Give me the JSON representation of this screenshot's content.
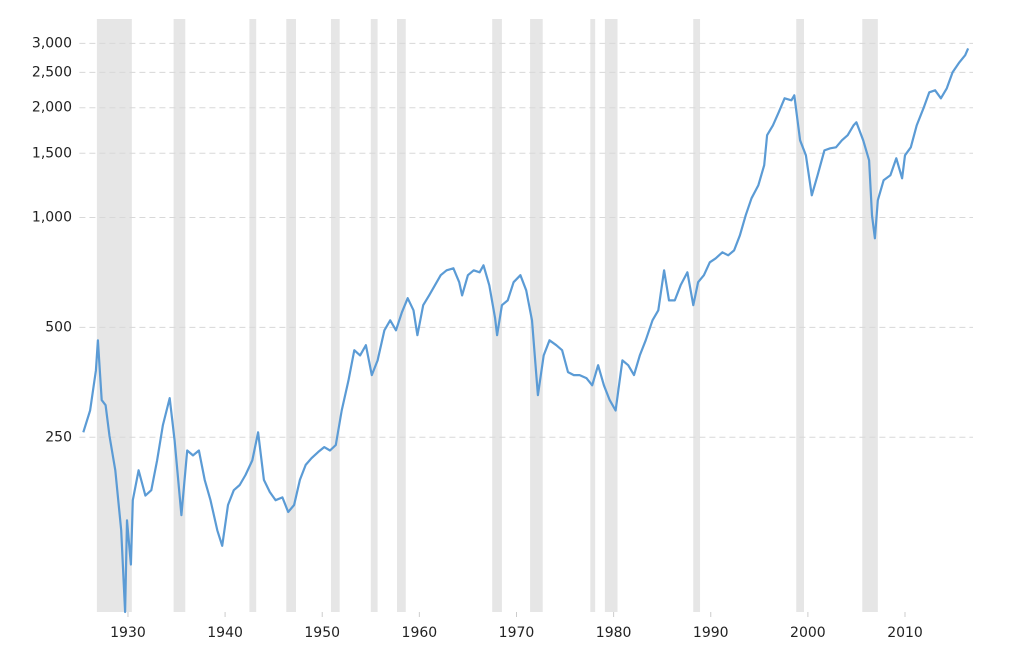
{
  "chart_data": {
    "type": "line",
    "color": "#5b9bd5",
    "shade_color": "#e6e6e6",
    "log_y": true,
    "grid": true,
    "xlim": [
      1925,
      2017
    ],
    "xticks": [
      1930,
      1940,
      1950,
      1960,
      1970,
      1980,
      1990,
      2000,
      2010
    ],
    "ylim": [
      83,
      3500
    ],
    "yticks": [
      250,
      500,
      {
        "value": 1000,
        "label": "1,000"
      },
      {
        "value": 1500,
        "label": "1,500"
      },
      {
        "value": 2000,
        "label": "2,000"
      },
      {
        "value": 2500,
        "label": "2,500"
      },
      {
        "value": 3000,
        "label": "3,000"
      }
    ],
    "recessions": [
      [
        1926.8,
        1930.4
      ],
      [
        1934.7,
        1935.9
      ],
      [
        1942.5,
        1943.2
      ],
      [
        1946.3,
        1947.3
      ],
      [
        1950.9,
        1951.8
      ],
      [
        1955.0,
        1955.7
      ],
      [
        1957.7,
        1958.6
      ],
      [
        1967.5,
        1968.5
      ],
      [
        1971.4,
        1972.7
      ],
      [
        1977.6,
        1978.1
      ],
      [
        1979.1,
        1980.4
      ],
      [
        1988.2,
        1988.9
      ],
      [
        1998.8,
        1999.6
      ],
      [
        2005.6,
        2007.2
      ]
    ],
    "x": [
      1925.4,
      1926.1,
      1926.7,
      1926.9,
      1927.3,
      1927.7,
      1928.1,
      1928.7,
      1929.3,
      1929.7,
      1929.9,
      1930.3,
      1930.5,
      1931.1,
      1931.8,
      1932.4,
      1933.0,
      1933.6,
      1934.3,
      1934.8,
      1935.5,
      1936.1,
      1936.7,
      1937.3,
      1937.9,
      1938.5,
      1939.2,
      1939.7,
      1940.3,
      1940.9,
      1941.5,
      1942.1,
      1942.8,
      1943.4,
      1944.0,
      1944.6,
      1945.2,
      1945.9,
      1946.5,
      1947.1,
      1947.7,
      1948.3,
      1948.9,
      1949.6,
      1950.2,
      1950.8,
      1951.4,
      1952.0,
      1952.7,
      1953.3,
      1953.9,
      1954.5,
      1955.1,
      1955.7,
      1956.4,
      1957.0,
      1957.6,
      1958.2,
      1958.8,
      1959.4,
      1959.8,
      1960.4,
      1961.0,
      1961.6,
      1962.2,
      1962.8,
      1963.5,
      1964.1,
      1964.4,
      1965.0,
      1965.6,
      1966.2,
      1966.6,
      1967.2,
      1967.8,
      1968.0,
      1968.5,
      1969.1,
      1969.7,
      1970.4,
      1971.0,
      1971.6,
      1972.2,
      1972.8,
      1973.4,
      1974.1,
      1974.7,
      1975.3,
      1975.9,
      1976.5,
      1977.2,
      1977.8,
      1978.4,
      1979.0,
      1979.6,
      1980.2,
      1980.9,
      1981.5,
      1982.1,
      1982.7,
      1983.3,
      1984.0,
      1984.6,
      1985.2,
      1985.7,
      1986.3,
      1986.9,
      1987.6,
      1988.2,
      1988.7,
      1989.3,
      1989.9,
      1990.5,
      1991.2,
      1991.8,
      1992.4,
      1993.0,
      1993.6,
      1994.2,
      1994.9,
      1995.5,
      1995.8,
      1996.4,
      1997.0,
      1997.6,
      1998.3,
      1998.6,
      1999.2,
      1999.8,
      2000.4,
      2001.0,
      2001.7,
      2002.3,
      2002.9,
      2003.5,
      2004.1,
      2004.7,
      2005.0,
      2005.7,
      2006.3,
      2006.6,
      2006.9,
      2007.2,
      2007.8,
      2008.5,
      2009.1,
      2009.7,
      2010.0,
      2010.6,
      2011.2,
      2011.9,
      2012.5,
      2013.1,
      2013.7,
      2014.3,
      2014.9,
      2015.6,
      2016.2,
      2016.5
    ],
    "values": [
      258,
      296,
      381,
      461,
      316,
      306,
      252,
      203,
      139,
      83,
      148,
      112,
      168,
      203,
      173,
      179,
      216,
      270,
      320,
      245,
      153,
      230,
      223,
      230,
      191,
      168,
      139,
      126,
      163,
      179,
      185,
      197,
      216,
      258,
      191,
      177,
      168,
      171,
      156,
      163,
      191,
      210,
      219,
      228,
      235,
      230,
      238,
      296,
      358,
      433,
      419,
      447,
      370,
      406,
      491,
      523,
      491,
      550,
      601,
      557,
      476,
      575,
      612,
      652,
      695,
      717,
      726,
      665,
      612,
      695,
      717,
      708,
      740,
      652,
      530,
      476,
      575,
      593,
      665,
      695,
      632,
      523,
      326,
      419,
      461,
      447,
      433,
      377,
      370,
      370,
      363,
      347,
      394,
      347,
      316,
      296,
      406,
      394,
      370,
      419,
      461,
      523,
      557,
      717,
      593,
      593,
      652,
      708,
      575,
      665,
      695,
      754,
      773,
      803,
      788,
      813,
      894,
      1014,
      1129,
      1225,
      1391,
      1681,
      1789,
      1943,
      2122,
      2095,
      2163,
      1628,
      1481,
      1151,
      1306,
      1528,
      1548,
      1558,
      1628,
      1681,
      1789,
      1824,
      1628,
      1435,
      1014,
      877,
      1115,
      1265,
      1306,
      1453,
      1281,
      1481,
      1558,
      1789,
      1993,
      2204,
      2232,
      2122,
      2260,
      2500,
      2663,
      2785,
      2908
    ]
  }
}
